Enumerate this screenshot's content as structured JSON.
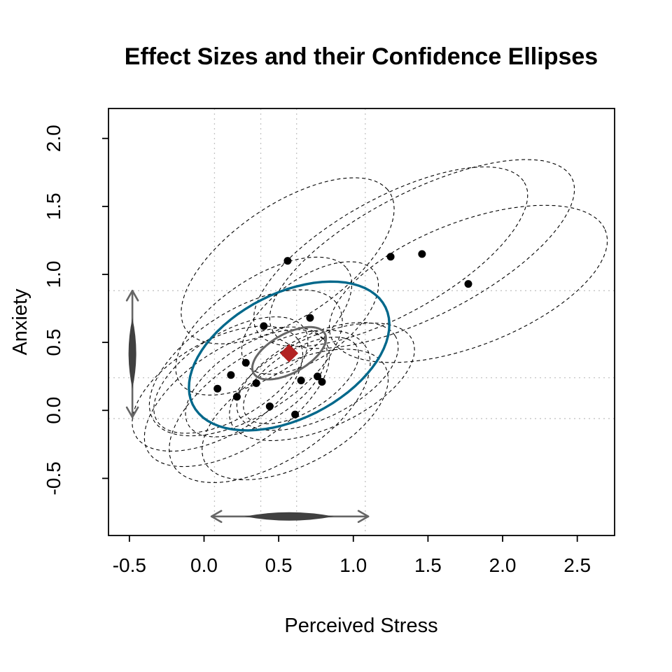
{
  "chart_data": {
    "type": "scatter",
    "title": "Effect Sizes and their Confidence Ellipses",
    "xlabel": "Perceived Stress",
    "ylabel": "Anxiety",
    "xlim": [
      -0.64,
      2.75
    ],
    "ylim": [
      -0.92,
      2.22
    ],
    "x_ticks": [
      -0.5,
      0.0,
      0.5,
      1.0,
      1.5,
      2.0,
      2.5
    ],
    "x_tick_labels": [
      "-0.5",
      "0.0",
      "0.5",
      "1.0",
      "1.5",
      "2.0",
      "2.5"
    ],
    "y_ticks": [
      -0.5,
      0.0,
      0.5,
      1.0,
      1.5,
      2.0
    ],
    "y_tick_labels": [
      "-0.5",
      "0.0",
      "0.5",
      "1.0",
      "1.5",
      "2.0"
    ],
    "grid": {
      "v_dotted_x": [
        0.07,
        0.38,
        0.62,
        1.08
      ],
      "h_dotted_y": [
        0.88,
        0.24,
        -0.06
      ]
    },
    "studies": [
      {
        "x": 0.56,
        "y": 1.1,
        "a": 0.85,
        "b": 0.4,
        "angle": 38
      },
      {
        "x": 1.25,
        "y": 1.13,
        "a": 1.05,
        "b": 0.42,
        "angle": 32
      },
      {
        "x": 1.46,
        "y": 1.15,
        "a": 1.15,
        "b": 0.45,
        "angle": 30
      },
      {
        "x": 1.77,
        "y": 0.93,
        "a": 1.0,
        "b": 0.45,
        "angle": 24
      },
      {
        "x": 0.71,
        "y": 0.68,
        "a": 0.55,
        "b": 0.28,
        "angle": 40
      },
      {
        "x": 0.4,
        "y": 0.62,
        "a": 0.7,
        "b": 0.34,
        "angle": 38
      },
      {
        "x": 0.28,
        "y": 0.35,
        "a": 0.75,
        "b": 0.38,
        "angle": 36
      },
      {
        "x": 0.18,
        "y": 0.26,
        "a": 0.6,
        "b": 0.3,
        "angle": 36
      },
      {
        "x": 0.09,
        "y": 0.16,
        "a": 0.65,
        "b": 0.34,
        "angle": 34
      },
      {
        "x": 0.22,
        "y": 0.1,
        "a": 0.72,
        "b": 0.36,
        "angle": 36
      },
      {
        "x": 0.35,
        "y": 0.2,
        "a": 0.55,
        "b": 0.28,
        "angle": 36
      },
      {
        "x": 0.65,
        "y": 0.22,
        "a": 0.45,
        "b": 0.22,
        "angle": 36
      },
      {
        "x": 0.76,
        "y": 0.25,
        "a": 0.6,
        "b": 0.3,
        "angle": 30
      },
      {
        "x": 0.79,
        "y": 0.21,
        "a": 0.68,
        "b": 0.33,
        "angle": 28
      },
      {
        "x": 0.44,
        "y": 0.03,
        "a": 0.78,
        "b": 0.4,
        "angle": 36
      },
      {
        "x": 0.61,
        "y": -0.03,
        "a": 0.7,
        "b": 0.36,
        "angle": 32
      }
    ],
    "summary": {
      "mean": {
        "x": 0.57,
        "y": 0.42
      },
      "prediction_ellipse": {
        "cx": 0.57,
        "cy": 0.4,
        "a": 0.74,
        "b": 0.45,
        "angle": 32
      },
      "mean_ellipse": {
        "cx": 0.57,
        "cy": 0.42,
        "a": 0.28,
        "b": 0.14,
        "angle": 33
      }
    },
    "marginals": {
      "y_arrow": {
        "x": -0.48,
        "from": -0.05,
        "to": 0.88,
        "density_center": 0.42,
        "density_half": 0.26
      },
      "x_arrow": {
        "y": -0.78,
        "from": 0.05,
        "to": 1.1,
        "density_center": 0.57,
        "density_half": 0.3
      }
    },
    "colors": {
      "point": "#000000",
      "study_ellipse": "#000000",
      "prediction_ellipse": "#00688B",
      "mean_ellipse": "#666666",
      "mean_marker": "#B22222",
      "grid": "#c4c4c4",
      "marginal": "#666666",
      "density": "#404040",
      "axis": "#000000"
    },
    "legend": "none"
  }
}
